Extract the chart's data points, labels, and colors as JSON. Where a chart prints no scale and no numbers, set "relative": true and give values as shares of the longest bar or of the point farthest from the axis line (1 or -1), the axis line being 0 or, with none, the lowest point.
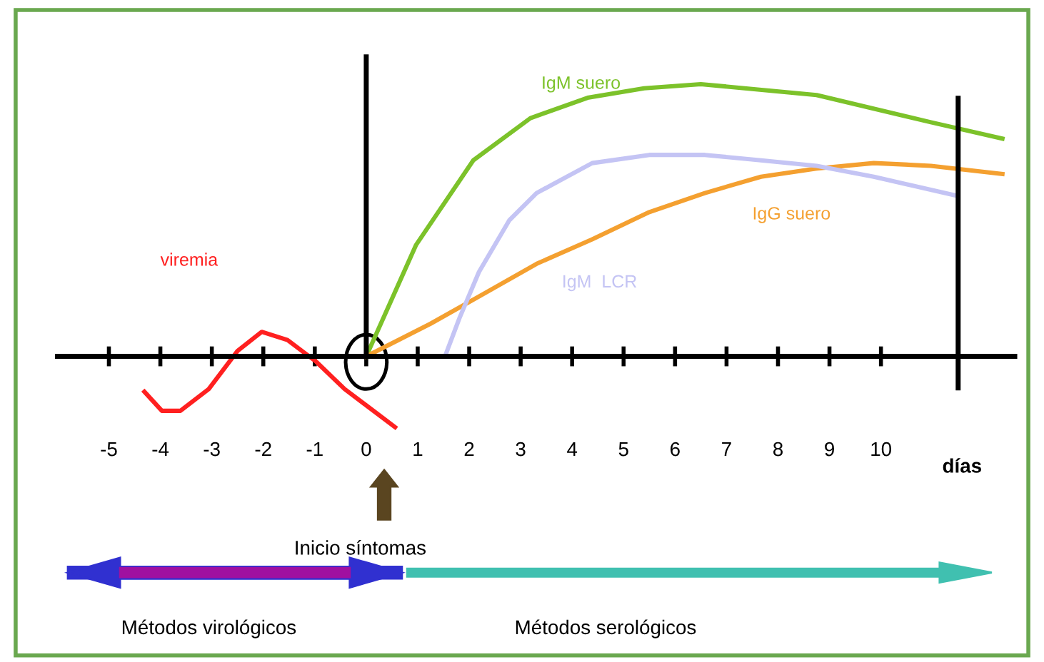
{
  "chart_data": {
    "type": "line",
    "relative": true,
    "xlabel": "días",
    "xlim": [
      -6,
      12.6
    ],
    "xticks": [
      -5,
      -4,
      -3,
      -2,
      -1,
      0,
      1,
      2,
      3,
      4,
      5,
      6,
      7,
      8,
      9,
      10
    ],
    "series": [
      {
        "name": "viremia",
        "color": "#ff2020",
        "x": [
          -4.31,
          -3.97,
          -3.61,
          -3.06,
          -2.5,
          -2.03,
          -1.53,
          -0.97,
          -0.42,
          0,
          0.56
        ],
        "values": [
          -0.13,
          -0.2,
          -0.2,
          -0.12,
          0.02,
          0.09,
          0.06,
          -0.02,
          -0.12,
          -0.18,
          -0.26
        ]
      },
      {
        "name": "IgM suero",
        "color": "#7cc22a",
        "x": [
          0,
          0.97,
          2.08,
          3.19,
          4.3,
          5.4,
          6.5,
          8.75,
          10.97,
          12.36
        ],
        "values": [
          0,
          0.41,
          0.72,
          0.875,
          0.95,
          0.985,
          1.0,
          0.96,
          0.86,
          0.8
        ]
      },
      {
        "name": "IgG suero",
        "color": "#f4a030",
        "x": [
          0,
          1.25,
          2.19,
          3.31,
          4.39,
          5.5,
          6.58,
          7.67,
          8.75,
          9.86,
          10.97,
          12.36
        ],
        "values": [
          0,
          0.12,
          0.22,
          0.34,
          0.43,
          0.53,
          0.6,
          0.66,
          0.69,
          0.71,
          0.7,
          0.67
        ]
      },
      {
        "name": "IgM  LCR",
        "color": "#c4c4f4",
        "x": [
          1.53,
          1.81,
          2.19,
          2.78,
          3.31,
          4.39,
          5.5,
          6.58,
          7.67,
          8.75,
          9.86,
          11.47
        ],
        "values": [
          0,
          0.14,
          0.31,
          0.5,
          0.6,
          0.71,
          0.74,
          0.74,
          0.72,
          0.7,
          0.66,
          0.59
        ]
      }
    ],
    "ref_lines": [
      {
        "axis": "x",
        "value": 11.5,
        "color": "#000000"
      }
    ],
    "legend": false,
    "marker": "none",
    "line_style": "solid",
    "annotations": [
      "Inicio síntomas",
      "Métodos virológicos",
      "Métodos serológicos"
    ]
  }
}
